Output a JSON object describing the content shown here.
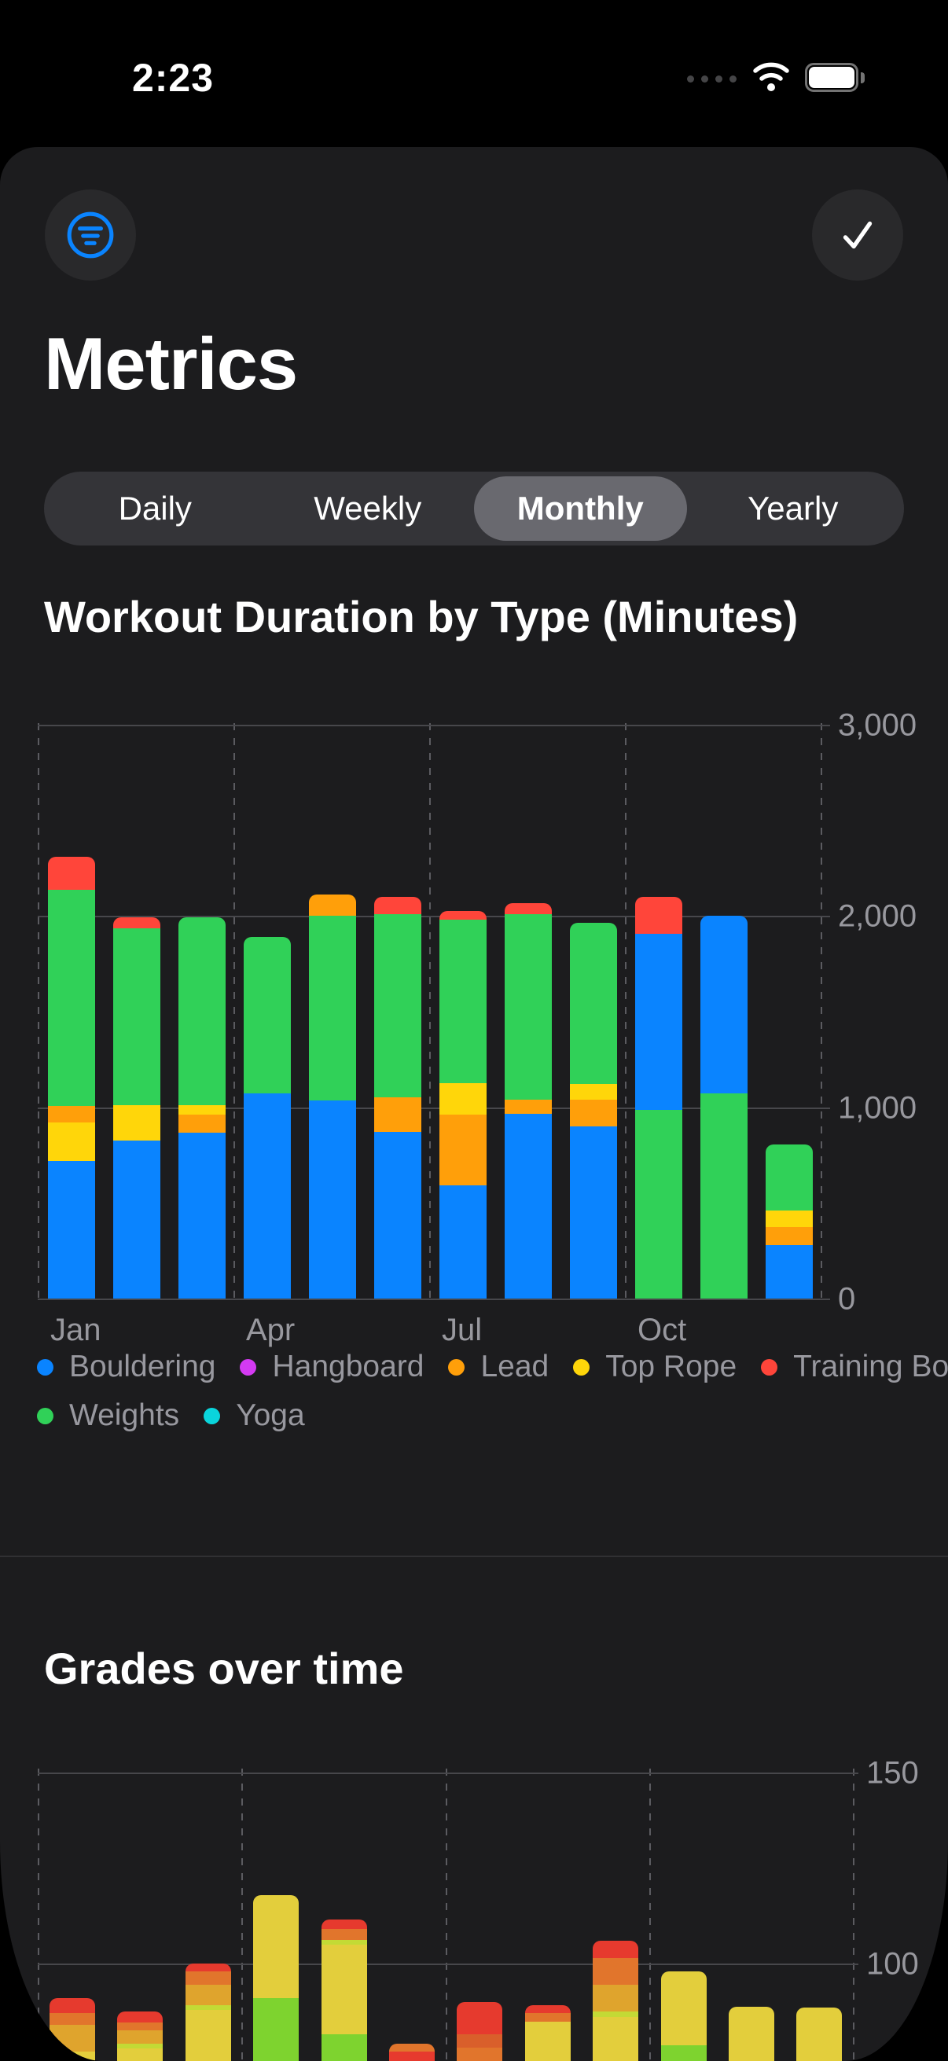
{
  "status_bar": {
    "time": "2:23"
  },
  "header": {
    "title": "Metrics"
  },
  "tabs": {
    "items": [
      "Daily",
      "Weekly",
      "Monthly",
      "Yearly"
    ],
    "selected_index": 2,
    "selected_label": "Monthly"
  },
  "sections": {
    "duration_title": "Workout Duration by Type (Minutes)",
    "grades_title": "Grades over time"
  },
  "palette": {
    "bouldering": "#0A84FF",
    "hangboard": "#D43AF2",
    "lead": "#FF9F0A",
    "top_rope": "#FFD60A",
    "training_board": "#FF453A",
    "weights": "#30D158",
    "yoga": "#0AD5DC",
    "accent_blue": "#0A84FF",
    "axis_text": "#98989E",
    "grade_yellow": "#E3CE3C",
    "grade_amber": "#DFA42D",
    "grade_orange": "#E1752C",
    "grade_dark_orange": "#D95F2B",
    "grade_red": "#E63A2E",
    "grade_lime": "#C3DA35",
    "grade_green": "#7ED32F"
  },
  "legend": {
    "rows": [
      [
        {
          "key": "bouldering",
          "label": "Bouldering"
        },
        {
          "key": "hangboard",
          "label": "Hangboard"
        },
        {
          "key": "lead",
          "label": "Lead"
        },
        {
          "key": "top_rope",
          "label": "Top Rope"
        },
        {
          "key": "training_board",
          "label": "Training Board"
        }
      ],
      [
        {
          "key": "weights",
          "label": "Weights"
        },
        {
          "key": "yoga",
          "label": "Yoga"
        }
      ]
    ]
  },
  "chart_data": [
    {
      "type": "bar",
      "stacked": true,
      "title": "Workout Duration by Type (Minutes)",
      "ylabel": "minutes",
      "ylim": [
        0,
        3000
      ],
      "grid": true,
      "legend_position": "bottom",
      "y_ticks": [
        {
          "value": 0,
          "label": "0"
        },
        {
          "value": 1000,
          "label": "1,000"
        },
        {
          "value": 2000,
          "label": "2,000"
        },
        {
          "value": 3000,
          "label": "3,000"
        }
      ],
      "x_tick_labels": [
        "Jan",
        "Apr",
        "Jul",
        "Oct"
      ],
      "categories": [
        "Jan",
        "Feb",
        "Mar",
        "Apr",
        "May",
        "Jun",
        "Jul",
        "Aug",
        "Sep",
        "Oct",
        "Nov",
        "Dec"
      ],
      "months": [
        {
          "month": "Jan",
          "segments": [
            {
              "series": "bouldering",
              "value": 720
            },
            {
              "series": "top_rope",
              "value": 200
            },
            {
              "series": "lead",
              "value": 85
            },
            {
              "series": "weights",
              "value": 1130
            },
            {
              "series": "training_board",
              "value": 175
            }
          ]
        },
        {
          "month": "Feb",
          "segments": [
            {
              "series": "bouldering",
              "value": 825
            },
            {
              "series": "top_rope",
              "value": 185
            },
            {
              "series": "weights",
              "value": 925
            },
            {
              "series": "training_board",
              "value": 55
            }
          ]
        },
        {
          "month": "Mar",
          "segments": [
            {
              "series": "bouldering",
              "value": 865
            },
            {
              "series": "lead",
              "value": 95
            },
            {
              "series": "top_rope",
              "value": 50
            },
            {
              "series": "weights",
              "value": 980
            }
          ]
        },
        {
          "month": "Apr",
          "segments": [
            {
              "series": "bouldering",
              "value": 1070
            },
            {
              "series": "weights",
              "value": 820
            }
          ]
        },
        {
          "month": "May",
          "segments": [
            {
              "series": "bouldering",
              "value": 1035
            },
            {
              "series": "weights",
              "value": 965
            },
            {
              "series": "lead",
              "value": 110
            }
          ]
        },
        {
          "month": "Jun",
          "segments": [
            {
              "series": "bouldering",
              "value": 870
            },
            {
              "series": "lead",
              "value": 180
            },
            {
              "series": "weights",
              "value": 960
            },
            {
              "series": "training_board",
              "value": 90
            }
          ]
        },
        {
          "month": "Jul",
          "segments": [
            {
              "series": "bouldering",
              "value": 590
            },
            {
              "series": "lead",
              "value": 370
            },
            {
              "series": "top_rope",
              "value": 165
            },
            {
              "series": "weights",
              "value": 855
            },
            {
              "series": "training_board",
              "value": 45
            }
          ]
        },
        {
          "month": "Aug",
          "segments": [
            {
              "series": "bouldering",
              "value": 965
            },
            {
              "series": "lead",
              "value": 75
            },
            {
              "series": "weights",
              "value": 970
            },
            {
              "series": "training_board",
              "value": 55
            }
          ]
        },
        {
          "month": "Sep",
          "segments": [
            {
              "series": "bouldering",
              "value": 900
            },
            {
              "series": "lead",
              "value": 140
            },
            {
              "series": "top_rope",
              "value": 80
            },
            {
              "series": "weights",
              "value": 845
            }
          ]
        },
        {
          "month": "Oct",
          "segments": [
            {
              "series": "weights",
              "value": 985
            },
            {
              "series": "bouldering",
              "value": 920
            },
            {
              "series": "training_board",
              "value": 195
            }
          ]
        },
        {
          "month": "Nov",
          "segments": [
            {
              "series": "weights",
              "value": 1070
            },
            {
              "series": "bouldering",
              "value": 930
            }
          ]
        },
        {
          "month": "Dec",
          "segments": [
            {
              "series": "bouldering",
              "value": 280
            },
            {
              "series": "lead",
              "value": 95
            },
            {
              "series": "top_rope",
              "value": 85
            },
            {
              "series": "weights",
              "value": 345
            }
          ]
        }
      ]
    },
    {
      "type": "bar",
      "stacked": true,
      "title": "Grades over time",
      "grid": true,
      "note": "chart is cut off by the bottom edge of the screen; segments listed top to bottom, last segment extends below the visible area",
      "visible_y_ticks": [
        {
          "value": 150,
          "label": "150"
        },
        {
          "value": 100,
          "label": "100"
        }
      ],
      "categories": [
        "Jan",
        "Feb",
        "Mar",
        "Apr",
        "May",
        "Jun",
        "Jul",
        "Aug",
        "Sep",
        "Oct",
        "Nov",
        "Dec"
      ],
      "months": [
        {
          "month": "Jan",
          "top": 91,
          "segments": [
            {
              "color": "grade_red",
              "units": 4
            },
            {
              "color": "grade_orange",
              "units": 3
            },
            {
              "color": "grade_amber",
              "units": 7
            },
            {
              "color": "grade_yellow",
              "rest": true
            }
          ]
        },
        {
          "month": "Feb",
          "top": 87.5,
          "segments": [
            {
              "color": "grade_red",
              "units": 3
            },
            {
              "color": "grade_orange",
              "units": 2
            },
            {
              "color": "grade_amber",
              "units": 3.5
            },
            {
              "color": "grade_lime",
              "units": 1.2
            },
            {
              "color": "grade_yellow",
              "rest": true
            }
          ]
        },
        {
          "month": "Mar",
          "top": 100,
          "segments": [
            {
              "color": "grade_red",
              "units": 2
            },
            {
              "color": "grade_orange",
              "units": 3.5
            },
            {
              "color": "grade_amber",
              "units": 5.5
            },
            {
              "color": "grade_lime",
              "units": 1.2
            },
            {
              "color": "grade_yellow",
              "rest": true
            }
          ]
        },
        {
          "month": "Apr",
          "top": 118,
          "segments": [
            {
              "color": "grade_yellow",
              "units": 27
            },
            {
              "color": "grade_green",
              "rest": true
            }
          ]
        },
        {
          "month": "May",
          "top": 111.5,
          "segments": [
            {
              "color": "grade_red",
              "units": 2.5
            },
            {
              "color": "grade_orange",
              "units": 2.8
            },
            {
              "color": "grade_lime",
              "units": 1.2
            },
            {
              "color": "grade_yellow",
              "units": 23.5
            },
            {
              "color": "grade_green",
              "rest": true
            }
          ]
        },
        {
          "month": "Jun",
          "top": 79,
          "segments": [
            {
              "color": "grade_orange",
              "units": 2
            },
            {
              "color": "grade_red",
              "units": 2.5
            },
            {
              "color": "grade_orange",
              "rest": true
            }
          ]
        },
        {
          "month": "Jul",
          "top": 90,
          "segments": [
            {
              "color": "grade_red",
              "units": 8.5
            },
            {
              "color": "grade_dark_orange",
              "units": 3.5
            },
            {
              "color": "grade_orange",
              "rest": true
            }
          ]
        },
        {
          "month": "Aug",
          "top": 89,
          "segments": [
            {
              "color": "grade_red",
              "units": 2
            },
            {
              "color": "grade_orange",
              "units": 2.3
            },
            {
              "color": "grade_yellow",
              "rest": true
            }
          ]
        },
        {
          "month": "Sep",
          "top": 106,
          "segments": [
            {
              "color": "grade_red",
              "units": 4.5
            },
            {
              "color": "grade_orange",
              "units": 7
            },
            {
              "color": "grade_amber",
              "units": 7
            },
            {
              "color": "grade_lime",
              "units": 1.5
            },
            {
              "color": "grade_yellow",
              "rest": true
            }
          ]
        },
        {
          "month": "Oct",
          "top": 98,
          "segments": [
            {
              "color": "grade_yellow",
              "units": 19.5
            },
            {
              "color": "grade_green",
              "rest": true
            }
          ]
        },
        {
          "month": "Nov",
          "top": 88.7,
          "segments": [
            {
              "color": "grade_yellow",
              "rest": true
            }
          ]
        },
        {
          "month": "Dec",
          "top": 88.5,
          "segments": [
            {
              "color": "grade_yellow",
              "rest": true
            }
          ]
        }
      ]
    }
  ]
}
